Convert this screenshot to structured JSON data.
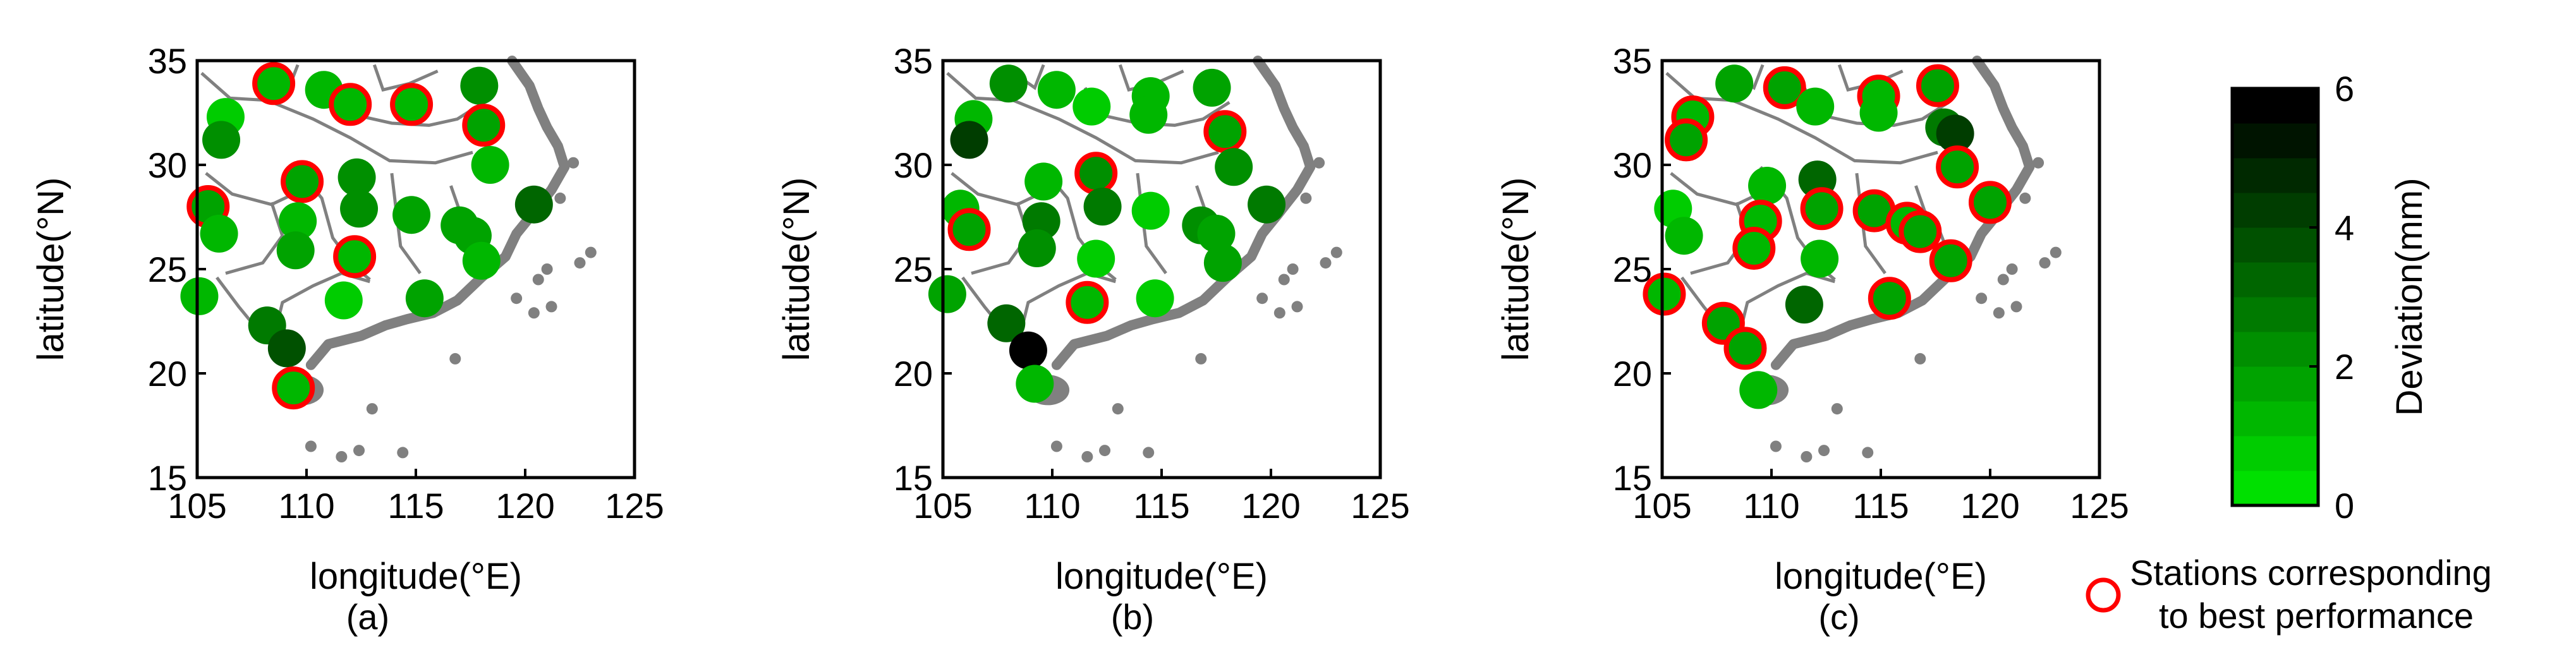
{
  "colorbar": {
    "label": "Deviation(mm)",
    "min": 0,
    "max": 6,
    "ticks": [
      "0",
      "2",
      "4",
      "6"
    ],
    "levels": 12,
    "color_low": "#00e000",
    "color_high": "#000000"
  },
  "legend": {
    "line1": "Stations corresponding",
    "line2": "to best performance",
    "marker_color": "#ff0000"
  },
  "station_fill_base": "#00e000",
  "coast_color": "#808080",
  "chart_data": [
    {
      "type": "scatter",
      "caption": "(a)",
      "xlabel": "longitude(°E)",
      "ylabel": "latitude(°N)",
      "xlim": [
        105,
        125
      ],
      "ylim": [
        15,
        35
      ],
      "xticks": [
        "105",
        "110",
        "115",
        "120",
        "125"
      ],
      "yticks": [
        "15",
        "20",
        "25",
        "30",
        "35"
      ],
      "points": [
        {
          "lon": 108.5,
          "lat": 33.9,
          "dev": 1.4,
          "best": true
        },
        {
          "lon": 110.8,
          "lat": 33.6,
          "dev": 1.2,
          "best": false
        },
        {
          "lon": 112.0,
          "lat": 32.9,
          "dev": 1.3,
          "best": true
        },
        {
          "lon": 114.8,
          "lat": 32.9,
          "dev": 1.2,
          "best": true
        },
        {
          "lon": 117.9,
          "lat": 33.8,
          "dev": 2.0,
          "best": false
        },
        {
          "lon": 118.1,
          "lat": 31.9,
          "dev": 1.7,
          "best": true
        },
        {
          "lon": 118.4,
          "lat": 30.0,
          "dev": 1.3,
          "best": false
        },
        {
          "lon": 106.3,
          "lat": 32.3,
          "dev": 0.8,
          "best": false
        },
        {
          "lon": 106.1,
          "lat": 31.2,
          "dev": 2.0,
          "best": false
        },
        {
          "lon": 109.8,
          "lat": 29.2,
          "dev": 1.6,
          "best": true
        },
        {
          "lon": 112.3,
          "lat": 29.4,
          "dev": 2.2,
          "best": false
        },
        {
          "lon": 105.5,
          "lat": 28.0,
          "dev": 1.5,
          "best": true
        },
        {
          "lon": 106.0,
          "lat": 26.7,
          "dev": 1.3,
          "best": false
        },
        {
          "lon": 109.6,
          "lat": 27.3,
          "dev": 1.2,
          "best": false
        },
        {
          "lon": 109.5,
          "lat": 25.9,
          "dev": 1.6,
          "best": false
        },
        {
          "lon": 112.4,
          "lat": 27.9,
          "dev": 2.1,
          "best": false
        },
        {
          "lon": 114.8,
          "lat": 27.6,
          "dev": 1.7,
          "best": false
        },
        {
          "lon": 117.0,
          "lat": 27.1,
          "dev": 1.8,
          "best": false
        },
        {
          "lon": 117.6,
          "lat": 26.6,
          "dev": 1.5,
          "best": false
        },
        {
          "lon": 120.4,
          "lat": 28.1,
          "dev": 3.0,
          "best": false
        },
        {
          "lon": 112.2,
          "lat": 25.6,
          "dev": 1.3,
          "best": true
        },
        {
          "lon": 118.0,
          "lat": 25.4,
          "dev": 1.4,
          "best": false
        },
        {
          "lon": 105.1,
          "lat": 23.7,
          "dev": 1.4,
          "best": false
        },
        {
          "lon": 111.7,
          "lat": 23.5,
          "dev": 0.6,
          "best": false
        },
        {
          "lon": 115.4,
          "lat": 23.6,
          "dev": 1.5,
          "best": false
        },
        {
          "lon": 108.2,
          "lat": 22.3,
          "dev": 2.6,
          "best": false
        },
        {
          "lon": 109.1,
          "lat": 21.2,
          "dev": 3.8,
          "best": false
        },
        {
          "lon": 109.4,
          "lat": 19.3,
          "dev": 1.2,
          "best": true
        }
      ]
    },
    {
      "type": "scatter",
      "caption": "(b)",
      "xlabel": "longitude(°E)",
      "ylabel": "latitude(°N)",
      "xlim": [
        105,
        125
      ],
      "ylim": [
        15,
        35
      ],
      "xticks": [
        "105",
        "110",
        "115",
        "120",
        "125"
      ],
      "yticks": [
        "15",
        "20",
        "25",
        "30",
        "35"
      ],
      "points": [
        {
          "lon": 108.0,
          "lat": 33.9,
          "dev": 2.2,
          "best": false
        },
        {
          "lon": 110.2,
          "lat": 33.6,
          "dev": 1.0,
          "best": false
        },
        {
          "lon": 111.8,
          "lat": 32.8,
          "dev": 0.9,
          "best": false
        },
        {
          "lon": 114.5,
          "lat": 33.3,
          "dev": 1.4,
          "best": false
        },
        {
          "lon": 114.4,
          "lat": 32.4,
          "dev": 1.3,
          "best": false
        },
        {
          "lon": 117.3,
          "lat": 33.7,
          "dev": 1.5,
          "best": false
        },
        {
          "lon": 117.9,
          "lat": 31.6,
          "dev": 1.6,
          "best": true
        },
        {
          "lon": 118.3,
          "lat": 29.9,
          "dev": 2.0,
          "best": false
        },
        {
          "lon": 106.4,
          "lat": 32.2,
          "dev": 1.2,
          "best": false
        },
        {
          "lon": 106.2,
          "lat": 31.2,
          "dev": 4.0,
          "best": false
        },
        {
          "lon": 109.6,
          "lat": 29.2,
          "dev": 1.4,
          "best": false
        },
        {
          "lon": 112.0,
          "lat": 29.6,
          "dev": 2.0,
          "best": true
        },
        {
          "lon": 112.3,
          "lat": 28.0,
          "dev": 2.6,
          "best": false
        },
        {
          "lon": 105.8,
          "lat": 27.9,
          "dev": 1.0,
          "best": false
        },
        {
          "lon": 106.2,
          "lat": 26.9,
          "dev": 1.5,
          "best": true
        },
        {
          "lon": 109.5,
          "lat": 27.3,
          "dev": 2.8,
          "best": false
        },
        {
          "lon": 109.3,
          "lat": 26.0,
          "dev": 2.4,
          "best": false
        },
        {
          "lon": 112.0,
          "lat": 25.5,
          "dev": 0.7,
          "best": false
        },
        {
          "lon": 114.5,
          "lat": 27.8,
          "dev": 0.9,
          "best": false
        },
        {
          "lon": 116.8,
          "lat": 27.1,
          "dev": 2.3,
          "best": false
        },
        {
          "lon": 117.5,
          "lat": 26.7,
          "dev": 1.9,
          "best": false
        },
        {
          "lon": 119.8,
          "lat": 28.1,
          "dev": 2.8,
          "best": false
        },
        {
          "lon": 117.8,
          "lat": 25.3,
          "dev": 1.8,
          "best": false
        },
        {
          "lon": 105.2,
          "lat": 23.8,
          "dev": 1.7,
          "best": false
        },
        {
          "lon": 111.6,
          "lat": 23.4,
          "dev": 1.4,
          "best": true
        },
        {
          "lon": 114.7,
          "lat": 23.6,
          "dev": 0.7,
          "best": false
        },
        {
          "lon": 107.9,
          "lat": 22.4,
          "dev": 3.0,
          "best": false
        },
        {
          "lon": 108.9,
          "lat": 21.1,
          "dev": 5.5,
          "best": false
        },
        {
          "lon": 109.2,
          "lat": 19.5,
          "dev": 1.0,
          "best": false
        }
      ]
    },
    {
      "type": "scatter",
      "caption": "(c)",
      "xlabel": "longitude(°E)",
      "ylabel": "latitude(°N)",
      "xlim": [
        105,
        125
      ],
      "ylim": [
        15,
        35
      ],
      "xticks": [
        "105",
        "110",
        "115",
        "120",
        "125"
      ],
      "yticks": [
        "15",
        "20",
        "25",
        "30",
        "35"
      ],
      "points": [
        {
          "lon": 108.3,
          "lat": 33.9,
          "dev": 1.6,
          "best": false
        },
        {
          "lon": 110.6,
          "lat": 33.7,
          "dev": 1.5,
          "best": true
        },
        {
          "lon": 112.0,
          "lat": 32.8,
          "dev": 1.4,
          "best": false
        },
        {
          "lon": 114.9,
          "lat": 33.3,
          "dev": 1.3,
          "best": true
        },
        {
          "lon": 114.9,
          "lat": 32.5,
          "dev": 1.2,
          "best": false
        },
        {
          "lon": 117.6,
          "lat": 33.8,
          "dev": 1.8,
          "best": true
        },
        {
          "lon": 117.9,
          "lat": 31.8,
          "dev": 2.6,
          "best": false
        },
        {
          "lon": 118.4,
          "lat": 31.5,
          "dev": 4.0,
          "best": false
        },
        {
          "lon": 118.5,
          "lat": 29.9,
          "dev": 1.5,
          "best": true
        },
        {
          "lon": 106.4,
          "lat": 32.3,
          "dev": 1.2,
          "best": true
        },
        {
          "lon": 106.1,
          "lat": 31.2,
          "dev": 1.5,
          "best": true
        },
        {
          "lon": 109.8,
          "lat": 29.0,
          "dev": 1.0,
          "best": false
        },
        {
          "lon": 112.1,
          "lat": 29.3,
          "dev": 3.2,
          "best": false
        },
        {
          "lon": 105.5,
          "lat": 27.9,
          "dev": 0.9,
          "best": false
        },
        {
          "lon": 106.0,
          "lat": 26.6,
          "dev": 1.2,
          "best": false
        },
        {
          "lon": 109.5,
          "lat": 27.3,
          "dev": 1.4,
          "best": true
        },
        {
          "lon": 109.2,
          "lat": 26.0,
          "dev": 1.4,
          "best": true
        },
        {
          "lon": 112.3,
          "lat": 27.9,
          "dev": 1.5,
          "best": true
        },
        {
          "lon": 114.7,
          "lat": 27.8,
          "dev": 1.6,
          "best": true
        },
        {
          "lon": 116.2,
          "lat": 27.2,
          "dev": 1.4,
          "best": true
        },
        {
          "lon": 116.8,
          "lat": 26.8,
          "dev": 1.5,
          "best": true
        },
        {
          "lon": 120.0,
          "lat": 28.2,
          "dev": 1.8,
          "best": true
        },
        {
          "lon": 112.2,
          "lat": 25.5,
          "dev": 1.3,
          "best": false
        },
        {
          "lon": 118.2,
          "lat": 25.4,
          "dev": 1.7,
          "best": true
        },
        {
          "lon": 105.1,
          "lat": 23.8,
          "dev": 1.4,
          "best": true
        },
        {
          "lon": 111.5,
          "lat": 23.3,
          "dev": 3.0,
          "best": false
        },
        {
          "lon": 115.4,
          "lat": 23.6,
          "dev": 1.5,
          "best": true
        },
        {
          "lon": 107.8,
          "lat": 22.4,
          "dev": 1.6,
          "best": true
        },
        {
          "lon": 108.8,
          "lat": 21.2,
          "dev": 1.7,
          "best": true
        },
        {
          "lon": 109.4,
          "lat": 19.2,
          "dev": 1.1,
          "best": false
        }
      ]
    }
  ]
}
